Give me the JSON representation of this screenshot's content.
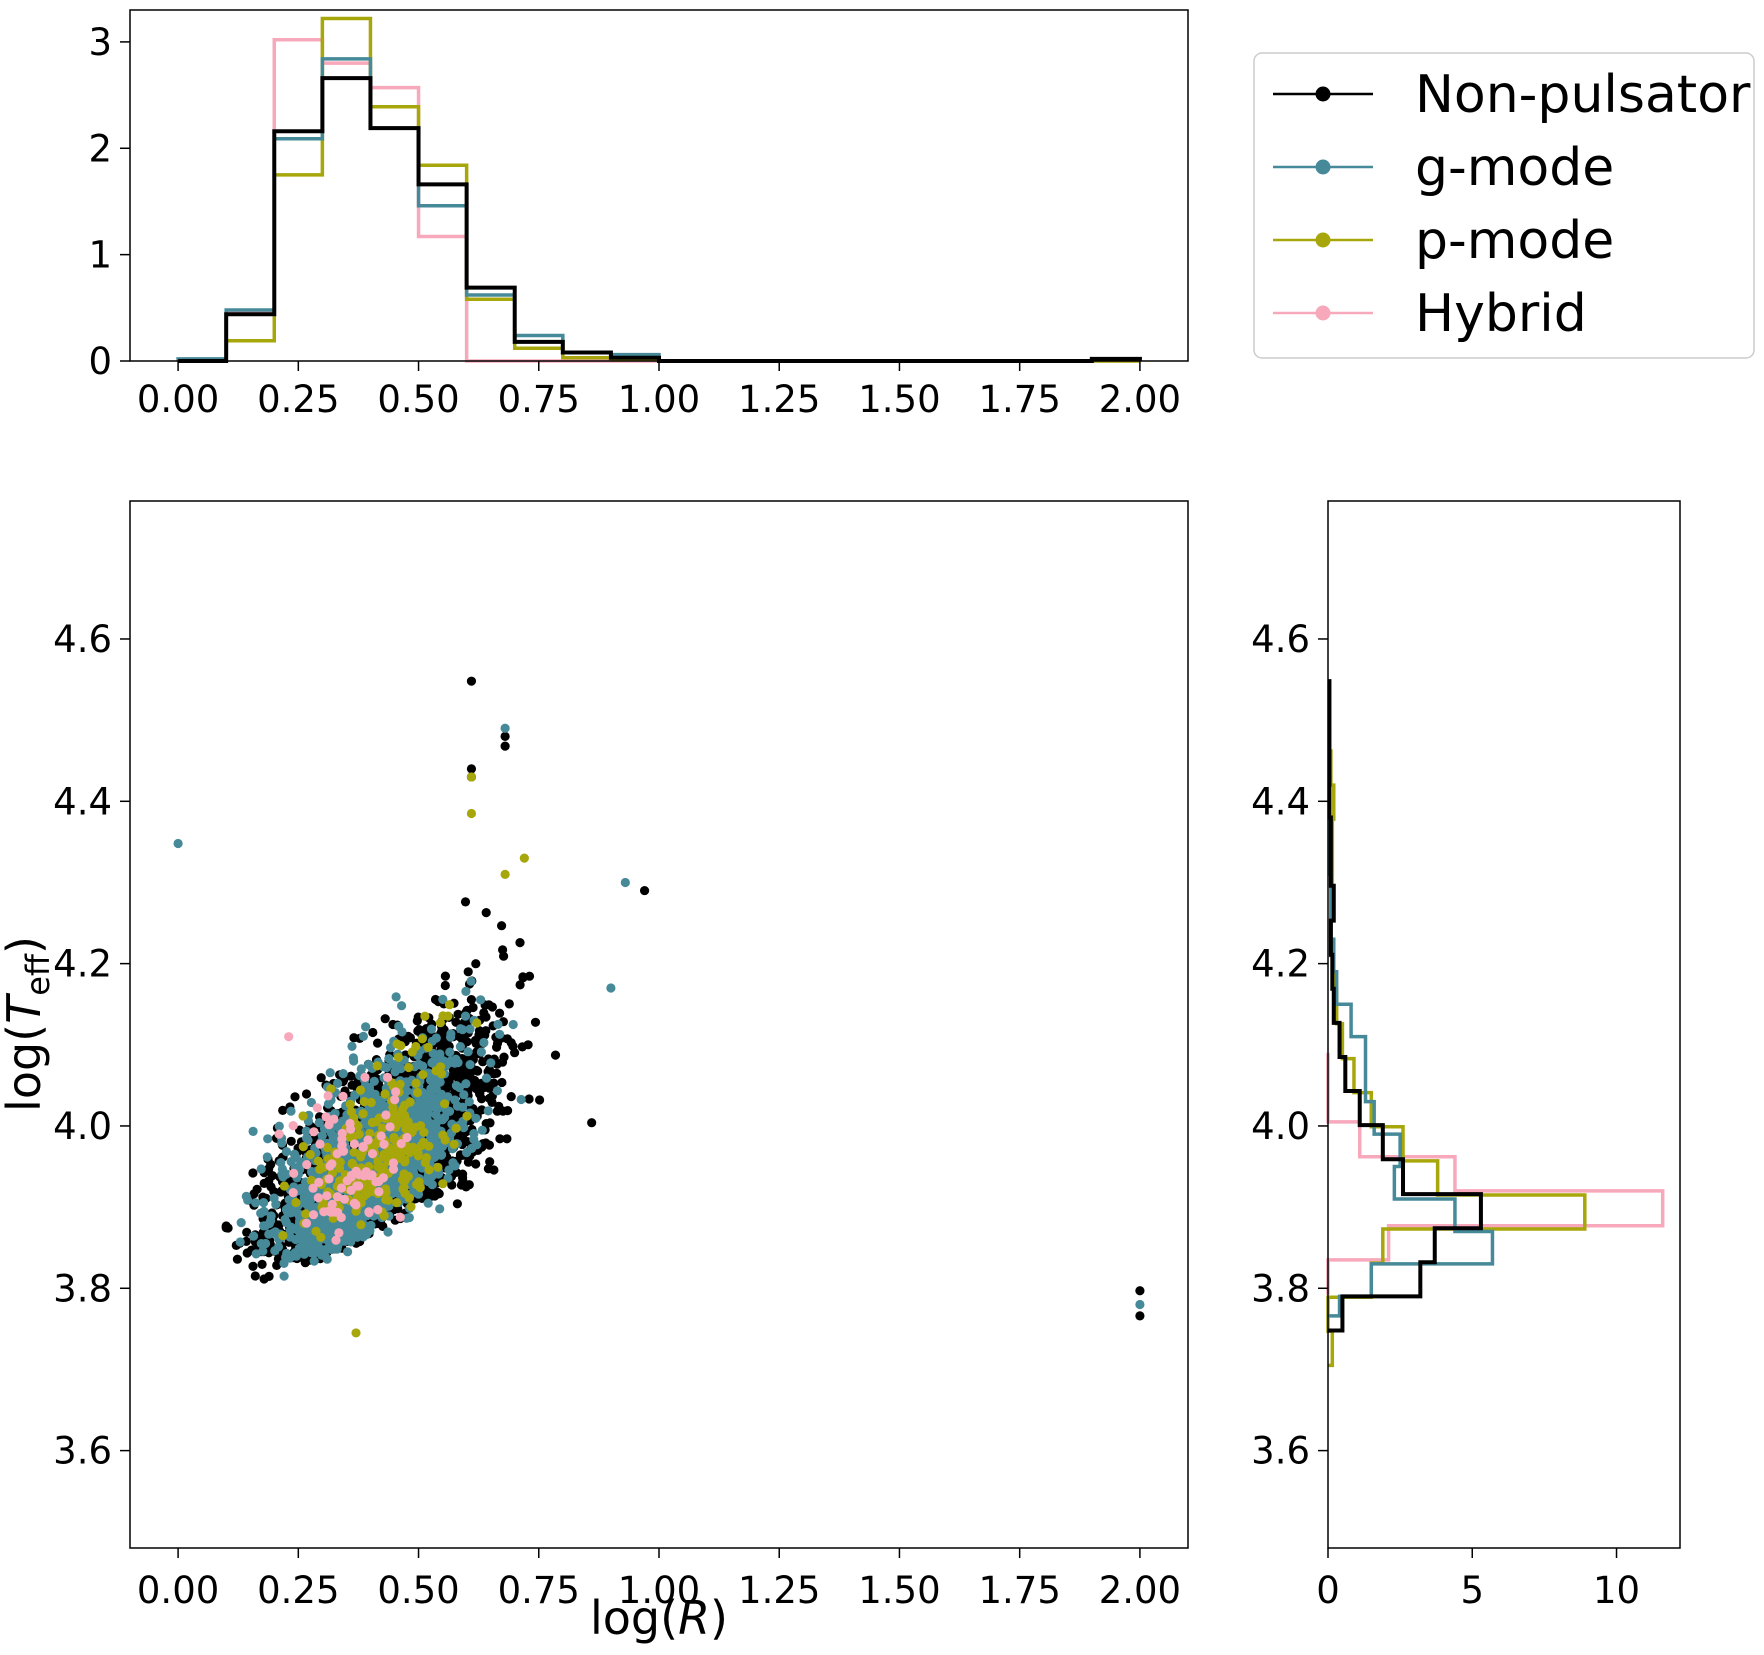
{
  "legend": {
    "placement": "top-right",
    "entries": [
      {
        "label": "Non-pulsator",
        "color": "#000000"
      },
      {
        "label": "g-mode",
        "color": "#468a9a"
      },
      {
        "label": "p-mode",
        "color": "#a7a70b"
      },
      {
        "label": "Hybrid",
        "color": "#f7a8bb"
      }
    ]
  },
  "chart_data": [
    {
      "type": "histogram",
      "panel": "top",
      "xlim": [
        -0.1,
        2.1
      ],
      "ylim": [
        0,
        3.3
      ],
      "xticks": [
        "0.00",
        "0.25",
        "0.50",
        "0.75",
        "1.00",
        "1.25",
        "1.50",
        "1.75",
        "2.00"
      ],
      "yticks": [
        "0",
        "1",
        "2",
        "3"
      ],
      "bin_edges": [
        0.0,
        0.1,
        0.2,
        0.3,
        0.4,
        0.5,
        0.6,
        0.7,
        0.8,
        0.9,
        1.0,
        1.1,
        1.2,
        1.3,
        1.4,
        1.5,
        1.6,
        1.7,
        1.8,
        1.9,
        2.0
      ],
      "series": [
        {
          "name": "Hybrid",
          "values": [
            0,
            0.45,
            3.02,
            2.8,
            2.57,
            1.17,
            0,
            0,
            0,
            0,
            0,
            0,
            0,
            0,
            0,
            0,
            0,
            0,
            0,
            0
          ]
        },
        {
          "name": "p-mode",
          "values": [
            0,
            0.19,
            1.75,
            3.22,
            2.39,
            1.84,
            0.58,
            0.12,
            0.03,
            0.02,
            0,
            0,
            0,
            0,
            0,
            0,
            0,
            0,
            0,
            0
          ]
        },
        {
          "name": "g-mode",
          "values": [
            0.02,
            0.48,
            2.09,
            2.84,
            2.19,
            1.46,
            0.62,
            0.24,
            0.08,
            0.06,
            0,
            0,
            0,
            0,
            0,
            0,
            0,
            0,
            0,
            0.02
          ]
        },
        {
          "name": "Non-pulsator",
          "values": [
            0,
            0.44,
            2.16,
            2.66,
            2.19,
            1.66,
            0.69,
            0.18,
            0.08,
            0.03,
            0,
            0,
            0,
            0,
            0,
            0,
            0,
            0,
            0,
            0.02
          ]
        }
      ]
    },
    {
      "type": "scatter",
      "panel": "main",
      "xlabel_base": "log(",
      "xlabel_var": "R",
      "xlabel_end": ")",
      "ylabel_base": "log(",
      "ylabel_var": "T",
      "ylabel_sub": "eff",
      "ylabel_end": ")",
      "xlim": [
        -0.1,
        2.1
      ],
      "ylim": [
        3.48,
        4.77
      ],
      "xticks": [
        "0.00",
        "0.25",
        "0.50",
        "0.75",
        "1.00",
        "1.25",
        "1.50",
        "1.75",
        "2.00"
      ],
      "yticks": [
        "3.6",
        "3.8",
        "4.0",
        "4.2",
        "4.4",
        "4.6"
      ],
      "series": [
        {
          "name": "Non-pulsator",
          "n_points": 2400,
          "distribution": {
            "x_center": 0.43,
            "x_sd": 0.15,
            "x_range": [
              0.1,
              0.98
            ],
            "y_min": 3.76,
            "y_range": [
              3.76,
              4.55
            ],
            "ridge_slope": 0.58
          },
          "outliers": [
            [
              0.61,
              4.548
            ],
            [
              0.68,
              4.48
            ],
            [
              0.68,
              4.468
            ],
            [
              0.61,
              4.44
            ],
            [
              0.61,
              4.43
            ],
            [
              2.0,
              3.797
            ],
            [
              2.0,
              3.766
            ],
            [
              0.97,
              4.29
            ],
            [
              0.86,
              4.004
            ]
          ]
        },
        {
          "name": "g-mode",
          "n_points": 1400,
          "distribution": {
            "x_center": 0.4,
            "x_sd": 0.13,
            "x_range": [
              0.12,
              0.93
            ],
            "y_min": 3.765,
            "y_range": [
              3.765,
              4.49
            ],
            "ridge_slope": 0.52
          },
          "outliers": [
            [
              0.0,
              4.348
            ],
            [
              2.0,
              3.78
            ],
            [
              0.68,
              4.49
            ],
            [
              0.93,
              4.3
            ],
            [
              0.9,
              4.17
            ]
          ]
        },
        {
          "name": "p-mode",
          "n_points": 230,
          "distribution": {
            "x_center": 0.42,
            "x_sd": 0.1,
            "x_range": [
              0.15,
              0.75
            ],
            "y_min": 3.8,
            "y_range": [
              3.8,
              4.43
            ],
            "ridge_slope": 0.3
          },
          "outliers": [
            [
              0.37,
              3.745
            ],
            [
              0.61,
              4.43
            ],
            [
              0.61,
              4.385
            ],
            [
              0.72,
              4.33
            ],
            [
              0.68,
              4.31
            ]
          ]
        },
        {
          "name": "Hybrid",
          "n_points": 80,
          "distribution": {
            "x_center": 0.36,
            "x_sd": 0.08,
            "x_range": [
              0.2,
              0.57
            ],
            "y_min": 3.82,
            "y_range": [
              3.82,
              4.11
            ],
            "ridge_slope": 0.1
          },
          "outliers": [
            [
              0.23,
              4.11
            ],
            [
              0.21,
              3.99
            ]
          ]
        }
      ]
    },
    {
      "type": "histogram",
      "panel": "right",
      "orientation": "horizontal",
      "xlim": [
        0,
        12.2
      ],
      "ylim": [
        3.48,
        4.77
      ],
      "xticks": [
        "0",
        "5",
        "10"
      ],
      "yticks": [
        "3.6",
        "3.8",
        "4.0",
        "4.2",
        "4.4",
        "4.6"
      ],
      "series": [
        {
          "name": "Hybrid",
          "bin_edges": [
            3.792,
            3.835,
            3.877,
            3.92,
            3.962,
            4.005,
            4.047,
            4.09
          ],
          "values": [
            0,
            2.1,
            11.6,
            4.4,
            1.1,
            0,
            0
          ]
        },
        {
          "name": "p-mode",
          "bin_edges": [
            3.705,
            3.747,
            3.789,
            3.831,
            3.873,
            3.915,
            3.957,
            3.999,
            4.041,
            4.083,
            4.126,
            4.168,
            4.21,
            4.252,
            4.294,
            4.336,
            4.378,
            4.42,
            4.462
          ],
          "values": [
            0.15,
            0,
            1.5,
            1.9,
            8.9,
            3.8,
            2.6,
            1.5,
            0.9,
            0.5,
            0.3,
            0.2,
            0.1,
            0.1,
            0.15,
            0.15,
            0.2,
            0.1
          ]
        },
        {
          "name": "g-mode",
          "bin_edges": [
            3.766,
            3.79,
            3.83,
            3.87,
            3.91,
            3.95,
            3.99,
            4.03,
            4.07,
            4.11,
            4.15,
            4.19,
            4.23,
            4.27,
            4.31,
            4.35,
            4.39,
            4.43,
            4.47,
            4.49
          ],
          "values": [
            0.4,
            1.5,
            5.7,
            4.4,
            2.3,
            2.5,
            1.6,
            1.3,
            1.3,
            0.8,
            0.3,
            0.2,
            0.1,
            0.1,
            0.05,
            0.05,
            0.05,
            0.05,
            0.05
          ]
        },
        {
          "name": "Non-pulsator",
          "bin_edges": [
            3.748,
            3.79,
            3.832,
            3.874,
            3.916,
            3.959,
            4.001,
            4.043,
            4.085,
            4.127,
            4.169,
            4.211,
            4.253,
            4.296,
            4.338,
            4.38,
            4.422,
            4.464,
            4.506,
            4.548
          ],
          "values": [
            0.5,
            3.2,
            3.7,
            5.3,
            2.6,
            1.9,
            1.1,
            0.6,
            0.4,
            0.2,
            0.15,
            0.1,
            0.2,
            0.1,
            0.1,
            0.05,
            0.05,
            0.05,
            0.05
          ]
        }
      ]
    }
  ]
}
